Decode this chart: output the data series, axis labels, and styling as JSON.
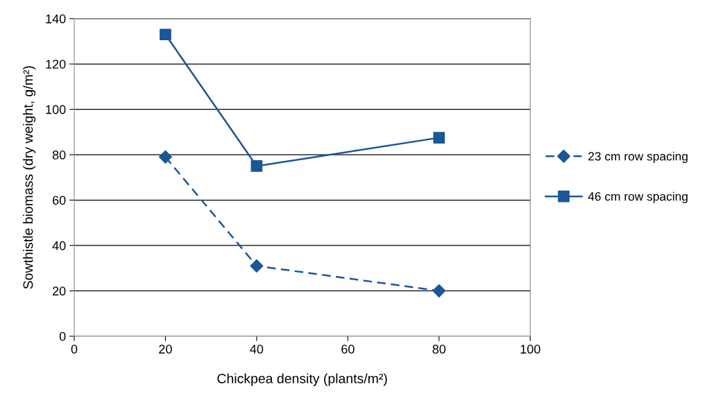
{
  "chart_data": {
    "type": "line",
    "xlabel": "Chickpea density (plants/m²)",
    "ylabel": "Sowthistle biomass (dry weight, g/m²)",
    "xlim": [
      0,
      100
    ],
    "xticks": [
      0,
      20,
      40,
      60,
      80,
      100
    ],
    "ylim": [
      0,
      140
    ],
    "yticks": [
      0,
      20,
      40,
      60,
      80,
      100,
      120,
      140
    ],
    "grid": "y",
    "legend": "right",
    "series": [
      {
        "name": "23 cm row spacing",
        "color": "#1a5796",
        "marker": "diamond",
        "line_style": "dashed",
        "x": [
          20,
          40,
          80
        ],
        "values": [
          79,
          31,
          20
        ]
      },
      {
        "name": "46 cm row spacing",
        "color": "#1a5796",
        "marker": "square",
        "line_style": "solid",
        "x": [
          20,
          40,
          80
        ],
        "values": [
          133,
          75,
          87.5
        ]
      }
    ]
  }
}
